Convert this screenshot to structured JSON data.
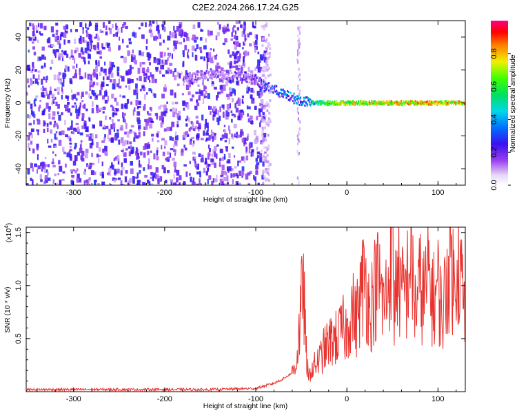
{
  "title": "C2E2.2024.266.17.24.G25",
  "top_chart": {
    "xlabel": "Height of straight line (km)",
    "ylabel": "Frequency (Hz)",
    "xlim": [
      -352,
      130
    ],
    "ylim": [
      -50,
      50
    ],
    "xticks": [
      -300,
      -200,
      -100,
      0,
      100
    ],
    "yticks": [
      -40,
      -20,
      0,
      20,
      40
    ],
    "colorbar": {
      "label": "Normalized spectral amplitude",
      "range": [
        0,
        1
      ],
      "ticks": [
        0.0,
        0.2,
        0.4,
        0.6,
        0.8
      ]
    }
  },
  "chart_data": [
    {
      "type": "heatmap",
      "title": "C2E2.2024.266.17.24.G25",
      "xlabel": "Height of straight line (km)",
      "ylabel": "Frequency (Hz)",
      "xlim": [
        -352,
        130
      ],
      "ylim": [
        -50,
        50
      ],
      "colorbar_label": "Normalized spectral amplitude",
      "ridge": {
        "x": [
          -180,
          -150,
          -120,
          -100,
          -90,
          -80,
          -70,
          -60,
          -50,
          -40,
          -20,
          0,
          20,
          50,
          90,
          130
        ],
        "frequency": [
          14,
          17,
          17,
          14,
          10,
          8,
          5,
          3,
          1,
          0,
          0,
          0,
          0,
          0,
          0,
          0
        ],
        "amplitude": [
          0.15,
          0.2,
          0.25,
          0.3,
          0.35,
          0.4,
          0.45,
          0.45,
          0.5,
          0.55,
          0.8,
          0.85,
          0.8,
          0.9,
          0.9,
          0.9
        ]
      }
    },
    {
      "type": "line",
      "xlabel": "Height of straight line (km)",
      "ylabel": "SNR (10 * v/v)",
      "y_multiplier": "(x10",
      "y_multiplier_exp": "4",
      "y_multiplier_close": ")",
      "xlim": [
        -352,
        130
      ],
      "ylim": [
        0,
        1.55
      ],
      "xticks": [
        -300,
        -200,
        -100,
        0,
        100
      ],
      "yticks": [
        0.5,
        1.0,
        1.5
      ],
      "series": [
        {
          "color": "#e8322e",
          "x": [
            -352,
            -300,
            -250,
            -200,
            -150,
            -100,
            -80,
            -70,
            -60,
            -55,
            -50,
            -48,
            -45,
            -42,
            -40,
            -35,
            -30,
            -25,
            -20,
            -15,
            -10,
            -5,
            0,
            5,
            10,
            15,
            20,
            25,
            30,
            35,
            40,
            45,
            50,
            52,
            55,
            60,
            65,
            70,
            75,
            80,
            85,
            90,
            95,
            100,
            105,
            110,
            115,
            118,
            120,
            125,
            130
          ],
          "y": [
            0.02,
            0.02,
            0.02,
            0.02,
            0.02,
            0.03,
            0.08,
            0.12,
            0.18,
            0.3,
            0.8,
            1.1,
            0.4,
            0.1,
            0.2,
            0.25,
            0.3,
            0.4,
            0.45,
            0.5,
            0.5,
            0.6,
            0.55,
            0.8,
            0.65,
            0.9,
            1.1,
            0.75,
            0.95,
            1.05,
            0.8,
            0.95,
            1.55,
            0.7,
            1.2,
            0.9,
            0.95,
            1.3,
            0.8,
            1.0,
            0.9,
            1.1,
            0.85,
            1.0,
            0.7,
            1.1,
            1.3,
            0.9,
            1.35,
            1.1,
            0.7
          ]
        }
      ]
    }
  ]
}
